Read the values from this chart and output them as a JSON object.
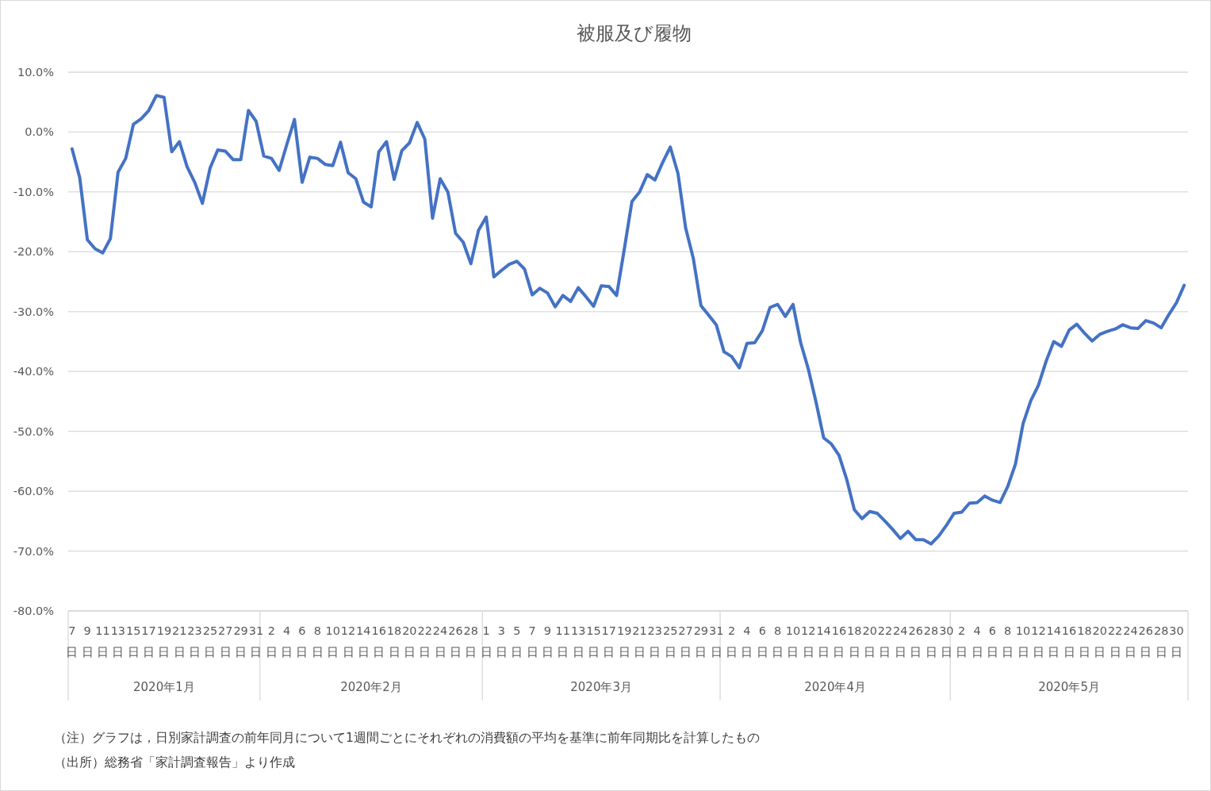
{
  "chart_data": {
    "type": "line",
    "title": "被服及び履物",
    "x": [
      "2020-01-07",
      "2020-01-08",
      "2020-01-09",
      "2020-01-10",
      "2020-01-11",
      "2020-01-12",
      "2020-01-13",
      "2020-01-14",
      "2020-01-15",
      "2020-01-16",
      "2020-01-17",
      "2020-01-18",
      "2020-01-19",
      "2020-01-20",
      "2020-01-21",
      "2020-01-22",
      "2020-01-23",
      "2020-01-24",
      "2020-01-25",
      "2020-01-26",
      "2020-01-27",
      "2020-01-28",
      "2020-01-29",
      "2020-01-30",
      "2020-01-31",
      "2020-02-01",
      "2020-02-02",
      "2020-02-03",
      "2020-02-04",
      "2020-02-05",
      "2020-02-06",
      "2020-02-07",
      "2020-02-08",
      "2020-02-09",
      "2020-02-10",
      "2020-02-11",
      "2020-02-12",
      "2020-02-13",
      "2020-02-14",
      "2020-02-15",
      "2020-02-16",
      "2020-02-17",
      "2020-02-18",
      "2020-02-19",
      "2020-02-20",
      "2020-02-21",
      "2020-02-22",
      "2020-02-23",
      "2020-02-24",
      "2020-02-25",
      "2020-02-26",
      "2020-02-27",
      "2020-02-28",
      "2020-02-29",
      "2020-03-01",
      "2020-03-02",
      "2020-03-03",
      "2020-03-04",
      "2020-03-05",
      "2020-03-06",
      "2020-03-07",
      "2020-03-08",
      "2020-03-09",
      "2020-03-10",
      "2020-03-11",
      "2020-03-12",
      "2020-03-13",
      "2020-03-14",
      "2020-03-15",
      "2020-03-16",
      "2020-03-17",
      "2020-03-18",
      "2020-03-19",
      "2020-03-20",
      "2020-03-21",
      "2020-03-22",
      "2020-03-23",
      "2020-03-24",
      "2020-03-25",
      "2020-03-26",
      "2020-03-27",
      "2020-03-28",
      "2020-03-29",
      "2020-03-30",
      "2020-03-31",
      "2020-04-01",
      "2020-04-02",
      "2020-04-03",
      "2020-04-04",
      "2020-04-05",
      "2020-04-06",
      "2020-04-07",
      "2020-04-08",
      "2020-04-09",
      "2020-04-10",
      "2020-04-11",
      "2020-04-12",
      "2020-04-13",
      "2020-04-14",
      "2020-04-15",
      "2020-04-16",
      "2020-04-17",
      "2020-04-18",
      "2020-04-19",
      "2020-04-20",
      "2020-04-21",
      "2020-04-22",
      "2020-04-23",
      "2020-04-24",
      "2020-04-25",
      "2020-04-26",
      "2020-04-27",
      "2020-04-28",
      "2020-04-29",
      "2020-04-30",
      "2020-05-01",
      "2020-05-02",
      "2020-05-03",
      "2020-05-04",
      "2020-05-05",
      "2020-05-06",
      "2020-05-07",
      "2020-05-08",
      "2020-05-09",
      "2020-05-10",
      "2020-05-11",
      "2020-05-12",
      "2020-05-13",
      "2020-05-14",
      "2020-05-15",
      "2020-05-16",
      "2020-05-17",
      "2020-05-18",
      "2020-05-19",
      "2020-05-20",
      "2020-05-21",
      "2020-05-22",
      "2020-05-23",
      "2020-05-24",
      "2020-05-25",
      "2020-05-26",
      "2020-05-27",
      "2020-05-28",
      "2020-05-29",
      "2020-05-30",
      "2020-05-31"
    ],
    "series": [
      {
        "color": "#4472c4",
        "values": [
          -2.8,
          -7.6,
          -18.0,
          -19.5,
          -20.2,
          -17.8,
          -6.7,
          -4.4,
          1.3,
          2.2,
          3.6,
          6.1,
          5.8,
          -3.3,
          -1.6,
          -5.8,
          -8.4,
          -11.9,
          -6.0,
          -3.0,
          -3.2,
          -4.6,
          -4.6,
          3.6,
          1.8,
          -4.0,
          -4.4,
          -6.4,
          -2.1,
          2.1,
          -8.4,
          -4.2,
          -4.4,
          -5.4,
          -5.6,
          -1.7,
          -6.8,
          -7.8,
          -11.7,
          -12.5,
          -3.3,
          -1.6,
          -7.9,
          -3.1,
          -1.8,
          1.6,
          -1.2,
          -14.4,
          -7.8,
          -10.0,
          -16.9,
          -18.4,
          -22.0,
          -16.4,
          -14.2,
          -24.2,
          -23.1,
          -22.1,
          -21.6,
          -22.9,
          -27.2,
          -26.1,
          -26.9,
          -29.2,
          -27.3,
          -28.3,
          -26.0,
          -27.5,
          -29.1,
          -25.7,
          -25.8,
          -27.3,
          -19.6,
          -11.6,
          -10.0,
          -7.1,
          -8.0,
          -5.1,
          -2.5,
          -6.9,
          -16.0,
          -21.1,
          -29.0,
          -30.6,
          -32.2,
          -36.7,
          -37.5,
          -39.4,
          -35.3,
          -35.2,
          -33.2,
          -29.3,
          -28.8,
          -30.8,
          -28.8,
          -35.2,
          -39.6,
          -45.1,
          -51.1,
          -52.1,
          -54.0,
          -58.0,
          -63.1,
          -64.6,
          -63.4,
          -63.7,
          -65.0,
          -66.4,
          -67.9,
          -66.7,
          -68.1,
          -68.1,
          -68.8,
          -67.5,
          -65.7,
          -63.7,
          -63.5,
          -62.0,
          -61.9,
          -60.8,
          -61.5,
          -61.9,
          -59.2,
          -55.5,
          -48.7,
          -44.9,
          -42.3,
          -38.3,
          -35.0,
          -35.8,
          -33.1,
          -32.1,
          -33.6,
          -34.9,
          -33.8,
          -33.3,
          -32.9,
          -32.2,
          -32.7,
          -32.8,
          -31.5,
          -31.9,
          -32.7,
          -30.5,
          -28.5,
          -25.6
        ]
      }
    ],
    "xlim": [
      "2020-01-06T12:00",
      "2020-05-31T12:00"
    ],
    "xticks": [
      {
        "value": "2020-01-07",
        "label": "7日"
      },
      {
        "value": "2020-01-09",
        "label": "9日"
      },
      {
        "value": "2020-01-11",
        "label": "11日"
      },
      {
        "value": "2020-01-13",
        "label": "13日"
      },
      {
        "value": "2020-01-15",
        "label": "15日"
      },
      {
        "value": "2020-01-17",
        "label": "17日"
      },
      {
        "value": "2020-01-19",
        "label": "19日"
      },
      {
        "value": "2020-01-21",
        "label": "21日"
      },
      {
        "value": "2020-01-23",
        "label": "23日"
      },
      {
        "value": "2020-01-25",
        "label": "25日"
      },
      {
        "value": "2020-01-27",
        "label": "27日"
      },
      {
        "value": "2020-01-29",
        "label": "29日"
      },
      {
        "value": "2020-01-31",
        "label": "31日"
      },
      {
        "value": "2020-02-02",
        "label": "2日"
      },
      {
        "value": "2020-02-04",
        "label": "4日"
      },
      {
        "value": "2020-02-06",
        "label": "6日"
      },
      {
        "value": "2020-02-08",
        "label": "8日"
      },
      {
        "value": "2020-02-10",
        "label": "10日"
      },
      {
        "value": "2020-02-12",
        "label": "12日"
      },
      {
        "value": "2020-02-14",
        "label": "14日"
      },
      {
        "value": "2020-02-16",
        "label": "16日"
      },
      {
        "value": "2020-02-18",
        "label": "18日"
      },
      {
        "value": "2020-02-20",
        "label": "20日"
      },
      {
        "value": "2020-02-22",
        "label": "22日"
      },
      {
        "value": "2020-02-24",
        "label": "24日"
      },
      {
        "value": "2020-02-26",
        "label": "26日"
      },
      {
        "value": "2020-02-28",
        "label": "28日"
      },
      {
        "value": "2020-03-01",
        "label": "1日"
      },
      {
        "value": "2020-03-03",
        "label": "3日"
      },
      {
        "value": "2020-03-05",
        "label": "5日"
      },
      {
        "value": "2020-03-07",
        "label": "7日"
      },
      {
        "value": "2020-03-09",
        "label": "9日"
      },
      {
        "value": "2020-03-11",
        "label": "11日"
      },
      {
        "value": "2020-03-13",
        "label": "13日"
      },
      {
        "value": "2020-03-15",
        "label": "15日"
      },
      {
        "value": "2020-03-17",
        "label": "17日"
      },
      {
        "value": "2020-03-19",
        "label": "19日"
      },
      {
        "value": "2020-03-21",
        "label": "21日"
      },
      {
        "value": "2020-03-23",
        "label": "23日"
      },
      {
        "value": "2020-03-25",
        "label": "25日"
      },
      {
        "value": "2020-03-27",
        "label": "27日"
      },
      {
        "value": "2020-03-29",
        "label": "29日"
      },
      {
        "value": "2020-03-31",
        "label": "31日"
      },
      {
        "value": "2020-04-02",
        "label": "2日"
      },
      {
        "value": "2020-04-04",
        "label": "4日"
      },
      {
        "value": "2020-04-06",
        "label": "6日"
      },
      {
        "value": "2020-04-08",
        "label": "8日"
      },
      {
        "value": "2020-04-10",
        "label": "10日"
      },
      {
        "value": "2020-04-12",
        "label": "12日"
      },
      {
        "value": "2020-04-14",
        "label": "14日"
      },
      {
        "value": "2020-04-16",
        "label": "16日"
      },
      {
        "value": "2020-04-18",
        "label": "18日"
      },
      {
        "value": "2020-04-20",
        "label": "20日"
      },
      {
        "value": "2020-04-22",
        "label": "22日"
      },
      {
        "value": "2020-04-24",
        "label": "24日"
      },
      {
        "value": "2020-04-26",
        "label": "26日"
      },
      {
        "value": "2020-04-28",
        "label": "28日"
      },
      {
        "value": "2020-04-30",
        "label": "30日"
      },
      {
        "value": "2020-05-02",
        "label": "2日"
      },
      {
        "value": "2020-05-04",
        "label": "4日"
      },
      {
        "value": "2020-05-06",
        "label": "6日"
      },
      {
        "value": "2020-05-08",
        "label": "8日"
      },
      {
        "value": "2020-05-10",
        "label": "10日"
      },
      {
        "value": "2020-05-12",
        "label": "12日"
      },
      {
        "value": "2020-05-14",
        "label": "14日"
      },
      {
        "value": "2020-05-16",
        "label": "16日"
      },
      {
        "value": "2020-05-18",
        "label": "18日"
      },
      {
        "value": "2020-05-20",
        "label": "20日"
      },
      {
        "value": "2020-05-22",
        "label": "22日"
      },
      {
        "value": "2020-05-24",
        "label": "24日"
      },
      {
        "value": "2020-05-26",
        "label": "26日"
      },
      {
        "value": "2020-05-28",
        "label": "28日"
      },
      {
        "value": "2020-05-30",
        "label": "30日"
      }
    ],
    "ylim": [
      -80,
      10
    ],
    "yticks": [
      {
        "value": -80,
        "label": "-80.0%"
      },
      {
        "value": -70,
        "label": "-70.0%"
      },
      {
        "value": -60,
        "label": "-60.0%"
      },
      {
        "value": -50,
        "label": "-50.0%"
      },
      {
        "value": -40,
        "label": "-40.0%"
      },
      {
        "value": -30,
        "label": "-30.0%"
      },
      {
        "value": -20,
        "label": "-20.0%"
      },
      {
        "value": -10,
        "label": "-10.0%"
      },
      {
        "value": 0,
        "label": "0.0%"
      },
      {
        "value": 10,
        "label": "10.0%"
      }
    ],
    "grid": "y",
    "annotations": [
      "2020年1月",
      "2020年2月",
      "2020年3月",
      "2020年4月",
      "2020年5月",
      "（注）グラフは，日別家計調査の前年同月について1週間ごとにそれぞれの消費額の平均を基準に前年同期比を計算したもの",
      "（出所）総務省「家計調査報告」より作成"
    ]
  }
}
